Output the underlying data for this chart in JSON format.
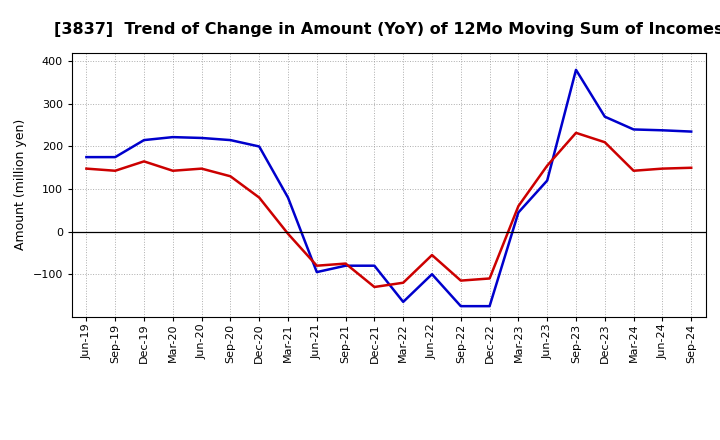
{
  "title": "[3837]  Trend of Change in Amount (YoY) of 12Mo Moving Sum of Incomes",
  "ylabel": "Amount (million yen)",
  "x_labels": [
    "Jun-19",
    "Sep-19",
    "Dec-19",
    "Mar-20",
    "Jun-20",
    "Sep-20",
    "Dec-20",
    "Mar-21",
    "Jun-21",
    "Sep-21",
    "Dec-21",
    "Mar-22",
    "Jun-22",
    "Sep-22",
    "Dec-22",
    "Mar-23",
    "Jun-23",
    "Sep-23",
    "Dec-23",
    "Mar-24",
    "Jun-24",
    "Sep-24"
  ],
  "ordinary_income": [
    175,
    175,
    215,
    222,
    220,
    215,
    200,
    80,
    -95,
    -80,
    -80,
    -165,
    -100,
    -175,
    -175,
    45,
    120,
    380,
    270,
    240,
    238,
    235
  ],
  "net_income": [
    148,
    143,
    165,
    143,
    148,
    130,
    80,
    -5,
    -80,
    -75,
    -130,
    -120,
    -55,
    -115,
    -110,
    60,
    155,
    232,
    210,
    143,
    148,
    150
  ],
  "ordinary_income_color": "#0000CC",
  "net_income_color": "#CC0000",
  "ylim": [
    -200,
    420
  ],
  "yticks": [
    -100,
    0,
    100,
    200,
    300,
    400
  ],
  "background_color": "#FFFFFF",
  "grid_color": "#999999",
  "title_fontsize": 11.5,
  "axis_label_fontsize": 9,
  "tick_fontsize": 8,
  "legend_fontsize": 9,
  "line_width": 1.8
}
